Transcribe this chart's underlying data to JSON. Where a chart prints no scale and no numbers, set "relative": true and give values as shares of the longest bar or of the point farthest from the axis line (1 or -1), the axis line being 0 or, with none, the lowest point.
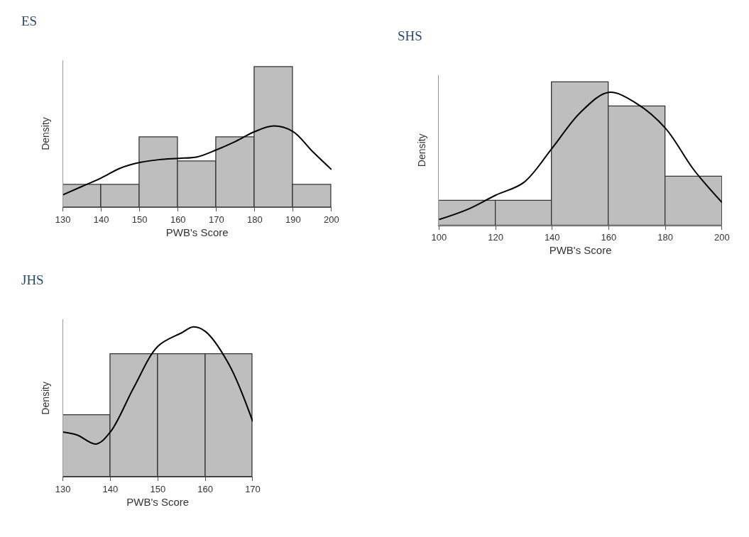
{
  "chart_data": [
    {
      "type": "histogram",
      "title": "ES",
      "xlabel": "PWB's Score",
      "ylabel": "Density",
      "relative": true,
      "tick_labels": "x",
      "color": "#bebebe",
      "xlim": [
        130,
        200
      ],
      "xticks": [
        130,
        140,
        150,
        160,
        170,
        180,
        190,
        200
      ],
      "bins": [
        130,
        140,
        150,
        160,
        170,
        180,
        190,
        200
      ],
      "values": [
        0.16,
        0.16,
        0.5,
        0.33,
        0.5,
        1,
        0.16
      ],
      "series": [
        {
          "type": "line",
          "color": "#000000",
          "x": [
            130,
            135,
            140,
            145,
            150,
            155,
            160,
            165,
            170,
            175,
            180,
            185,
            190,
            195,
            200
          ],
          "values": [
            0.09,
            0.15,
            0.21,
            0.28,
            0.32,
            0.34,
            0.35,
            0.36,
            0.41,
            0.47,
            0.54,
            0.58,
            0.54,
            0.4,
            0.27
          ]
        }
      ]
    },
    {
      "type": "histogram",
      "title": "SHS",
      "xlabel": "PWB's Score",
      "ylabel": "Density",
      "relative": true,
      "tick_labels": "x",
      "color": "#bebebe",
      "xlim": [
        100,
        200
      ],
      "xticks": [
        100,
        120,
        140,
        160,
        180,
        200
      ],
      "bins": [
        100,
        120,
        140,
        160,
        180,
        200
      ],
      "values": [
        0.17,
        0.17,
        1,
        0.83,
        0.34
      ],
      "series": [
        {
          "type": "line",
          "color": "#000000",
          "x": [
            100,
            110,
            120,
            130,
            140,
            150,
            160,
            170,
            180,
            190,
            200
          ],
          "values": [
            0.04,
            0.11,
            0.21,
            0.3,
            0.54,
            0.79,
            0.93,
            0.85,
            0.68,
            0.39,
            0.16
          ]
        }
      ]
    },
    {
      "type": "histogram",
      "title": "JHS",
      "xlabel": "PWB's Score",
      "ylabel": "Density",
      "relative": true,
      "tick_labels": "x",
      "color": "#bebebe",
      "xlim": [
        130,
        170
      ],
      "xticks": [
        130,
        140,
        150,
        160,
        170
      ],
      "bins": [
        130,
        140,
        150,
        160,
        170
      ],
      "values": [
        0.41,
        0.82,
        0.82,
        0.82
      ],
      "series": [
        {
          "type": "line",
          "color": "#000000",
          "x": [
            130,
            133,
            137,
            140,
            145,
            150,
            155,
            157.5,
            160,
            165,
            170
          ],
          "values": [
            0.3,
            0.28,
            0.22,
            0.3,
            0.6,
            0.87,
            0.96,
            1,
            0.97,
            0.75,
            0.37
          ]
        }
      ]
    }
  ]
}
